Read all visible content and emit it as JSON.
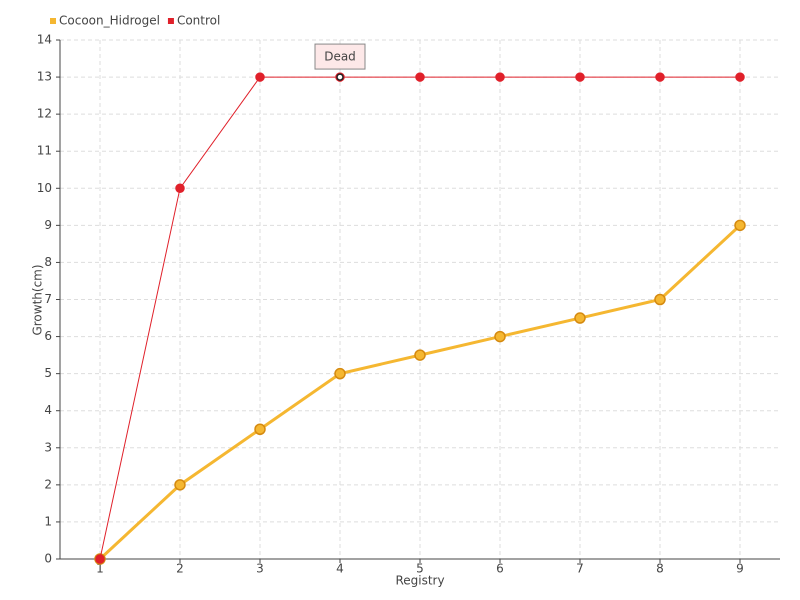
{
  "chart_data": {
    "type": "line",
    "x_label": "Registry",
    "y_label": "Growth(cm)",
    "x": [
      1,
      2,
      3,
      4,
      5,
      6,
      7,
      8,
      9
    ],
    "xlim": [
      0.5,
      9.5
    ],
    "xticks": [
      1,
      2,
      3,
      4,
      5,
      6,
      7,
      8,
      9
    ],
    "ylim": [
      0,
      14
    ],
    "yticks": [
      0,
      1,
      2,
      3,
      4,
      5,
      6,
      7,
      8,
      9,
      10,
      11,
      12,
      13,
      14
    ],
    "grid": true,
    "legend": "top-left",
    "series": [
      {
        "name": "Cocoon_Hidrogel",
        "color": "#f5b731",
        "values": [
          0,
          2,
          3.5,
          5,
          5.5,
          6,
          6.5,
          7,
          9
        ]
      },
      {
        "name": "Control",
        "color": "#e0202a",
        "values": [
          0,
          10,
          13,
          13,
          13,
          13,
          13,
          13,
          13
        ]
      }
    ],
    "annotations": [
      {
        "text": "Dead",
        "x": 4,
        "y": 13
      }
    ]
  }
}
